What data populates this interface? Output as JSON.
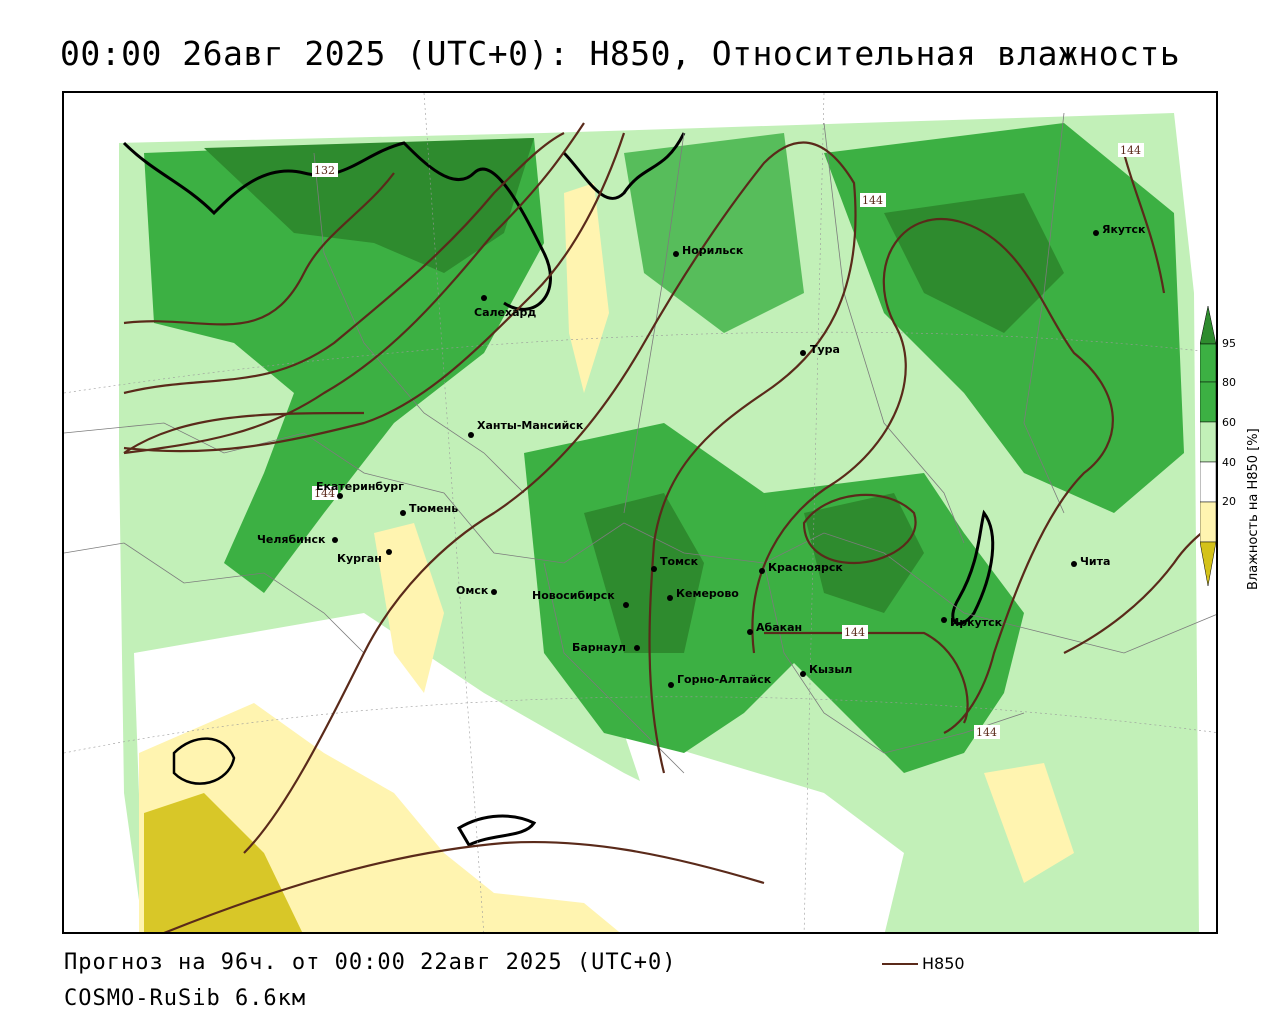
{
  "header": {
    "title": "00:00 26авг 2025 (UTC+0): H850, Относительная влажность"
  },
  "footer": {
    "forecast": "Прогноз на 96ч. от 00:00 22авг 2025 (UTC+0)",
    "model": "COSMO-RuSib 6.6км",
    "line_legend": "H850"
  },
  "colorbar": {
    "title": "Влажность на H850 [%]",
    "ticks": [
      "95",
      "80",
      "60",
      "40",
      "20"
    ],
    "colors": {
      "above95": "#2e8b2e",
      "80_95": "#3cb043",
      "60_80": "#c2f0b8",
      "40_60": "#ffffff",
      "20_40": "#fff4b0",
      "below20": "#d4c21a"
    }
  },
  "map": {
    "contour_color": "#5a2a1a",
    "contour_labels": [
      "132",
      "144",
      "144",
      "144",
      "144",
      "144"
    ],
    "cities": [
      {
        "name": "Норильск"
      },
      {
        "name": "Якутск"
      },
      {
        "name": "Салехард"
      },
      {
        "name": "Тура"
      },
      {
        "name": "Ханты-Мансийск"
      },
      {
        "name": "Екатеринбург"
      },
      {
        "name": "Тюмень"
      },
      {
        "name": "Челябинск"
      },
      {
        "name": "Курган"
      },
      {
        "name": "Омск"
      },
      {
        "name": "Новосибирск"
      },
      {
        "name": "Томск"
      },
      {
        "name": "Кемерово"
      },
      {
        "name": "Красноярск"
      },
      {
        "name": "Барнаул"
      },
      {
        "name": "Абакан"
      },
      {
        "name": "Иркутск"
      },
      {
        "name": "Чита"
      },
      {
        "name": "Кызыл"
      },
      {
        "name": "Горно-Алтайск"
      }
    ]
  }
}
